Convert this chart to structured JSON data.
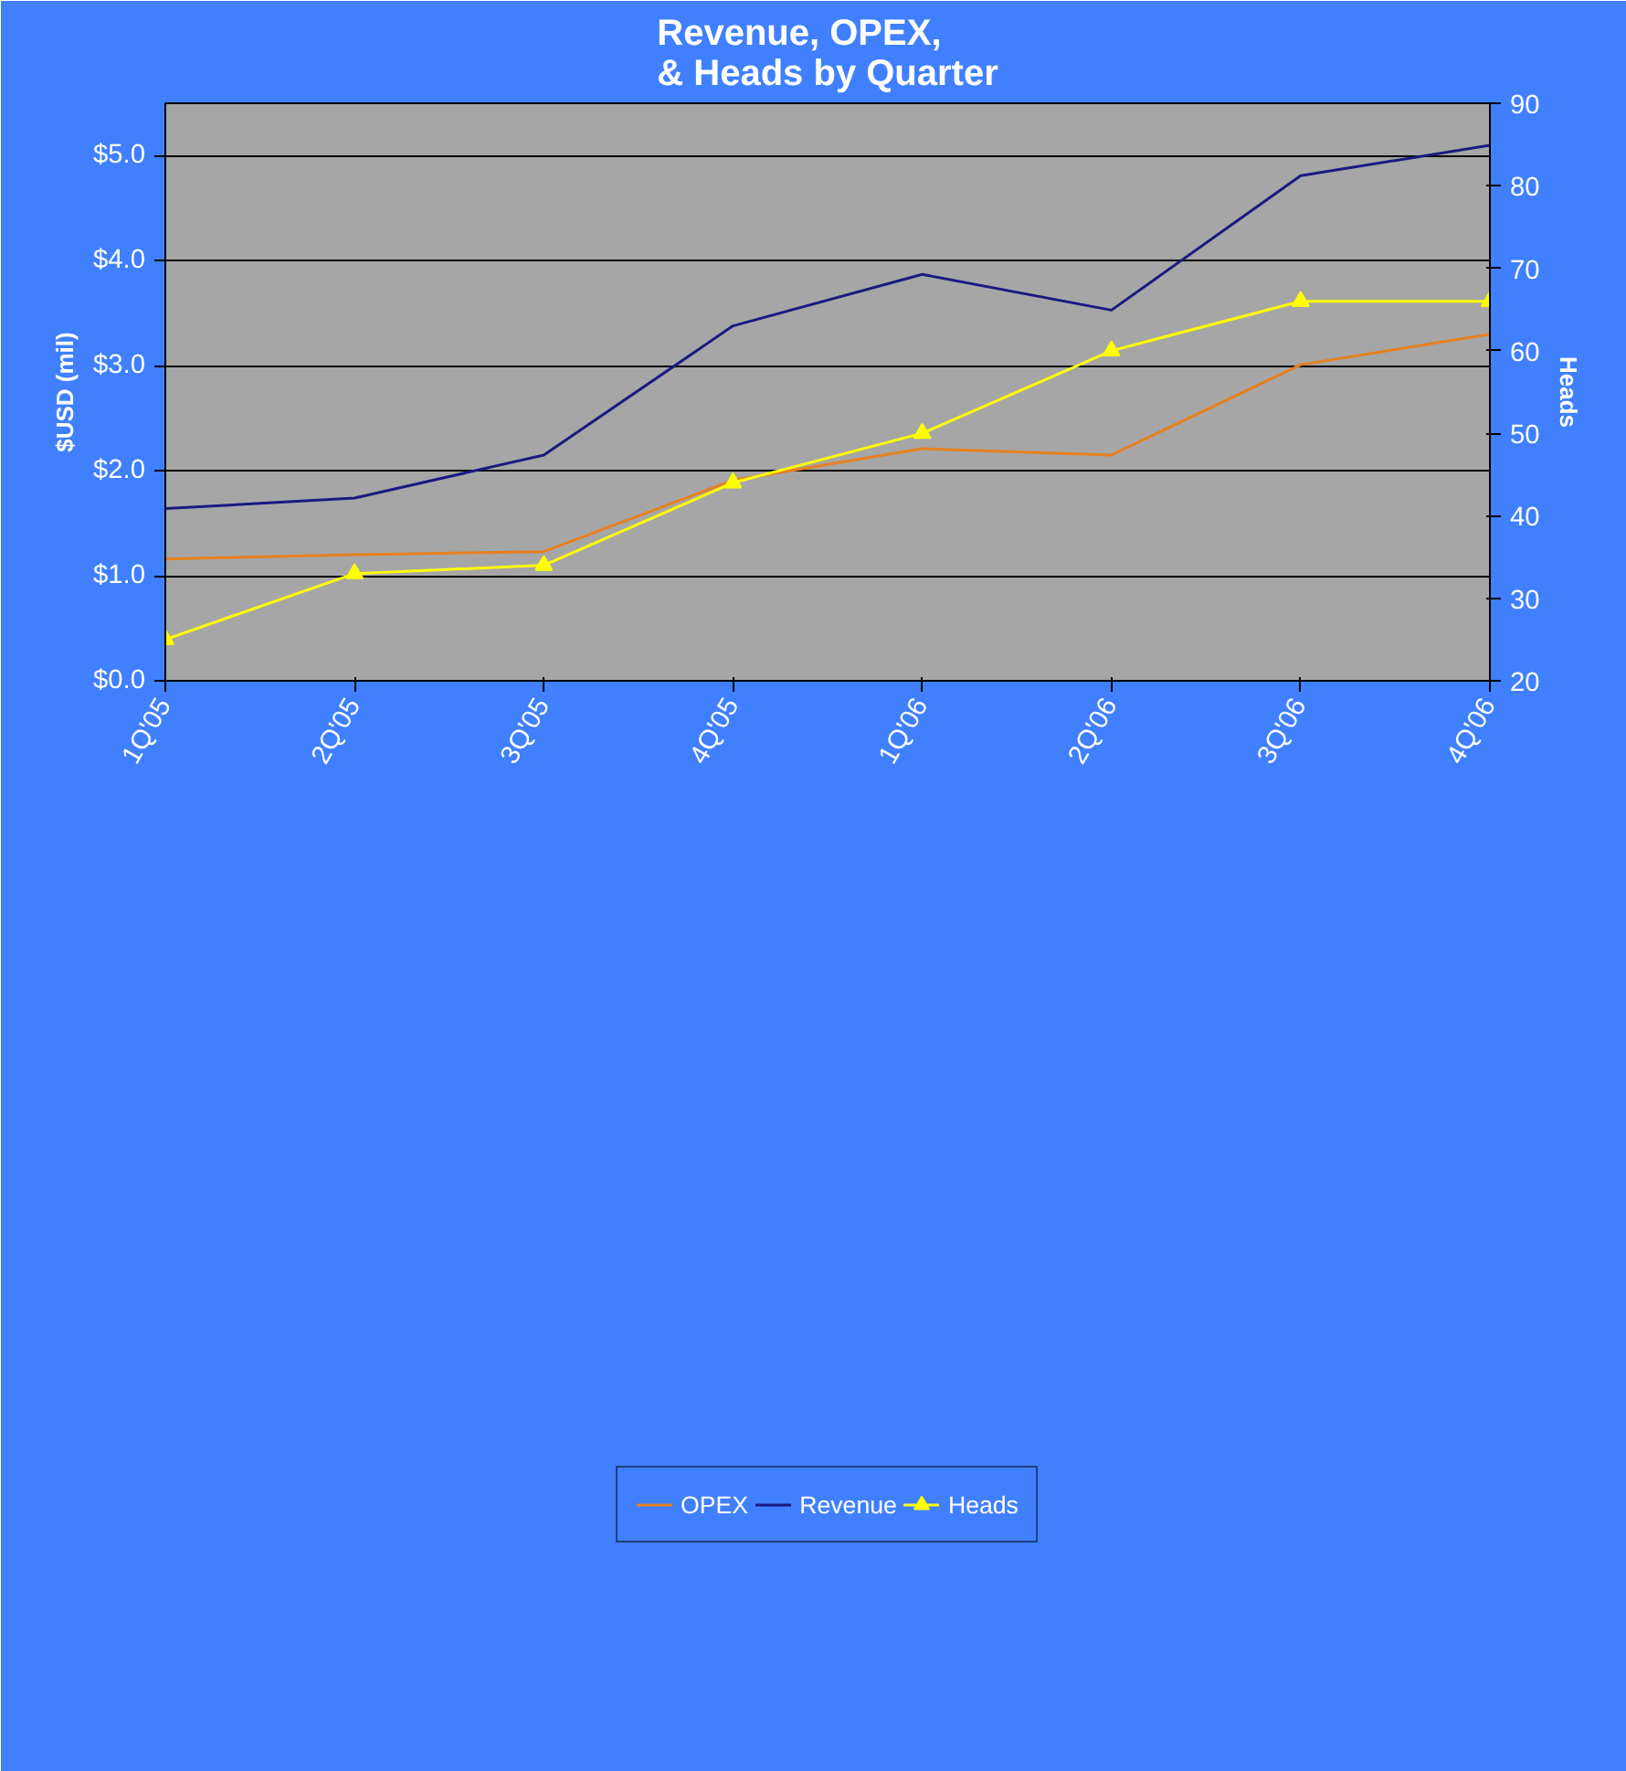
{
  "chart_data": {
    "type": "line",
    "title": "Revenue, OPEX,\n& Heads by Quarter",
    "ylabel": "$USD (mil)",
    "y2label": "Heads",
    "categories": [
      "1Q'05",
      "2Q'05",
      "3Q'05",
      "4Q'05",
      "1Q'06",
      "2Q'06",
      "3Q'06",
      "4Q'06"
    ],
    "series": [
      {
        "name": "OPEX",
        "color": "#e8801e",
        "marker": "none",
        "values": [
          1.16,
          1.2,
          1.23,
          1.91,
          2.21,
          2.15,
          3.01,
          3.3
        ]
      },
      {
        "name": "Revenue",
        "color": "#1a1a80",
        "marker": "none",
        "values": [
          1.64,
          1.74,
          2.15,
          3.38,
          3.87,
          3.53,
          4.81,
          5.1
        ]
      },
      {
        "name": "Heads",
        "color": "#ffff00",
        "marker": "triangle",
        "axis": "y2",
        "values": [
          25,
          33,
          34,
          44,
          50,
          60,
          66,
          66
        ]
      }
    ],
    "ylim": [
      0,
      5.5
    ],
    "yticks": [
      {
        "value": 0,
        "label": "$0.0"
      },
      {
        "value": 1,
        "label": "$1.0"
      },
      {
        "value": 2,
        "label": "$2.0"
      },
      {
        "value": 3,
        "label": "$3.0"
      },
      {
        "value": 4,
        "label": "$4.0"
      },
      {
        "value": 5,
        "label": "$5.0"
      }
    ],
    "y2lim": [
      20,
      90
    ],
    "y2ticks": [
      20,
      30,
      40,
      50,
      60,
      70,
      80,
      90
    ],
    "grid": "y",
    "legend": "bottom"
  }
}
